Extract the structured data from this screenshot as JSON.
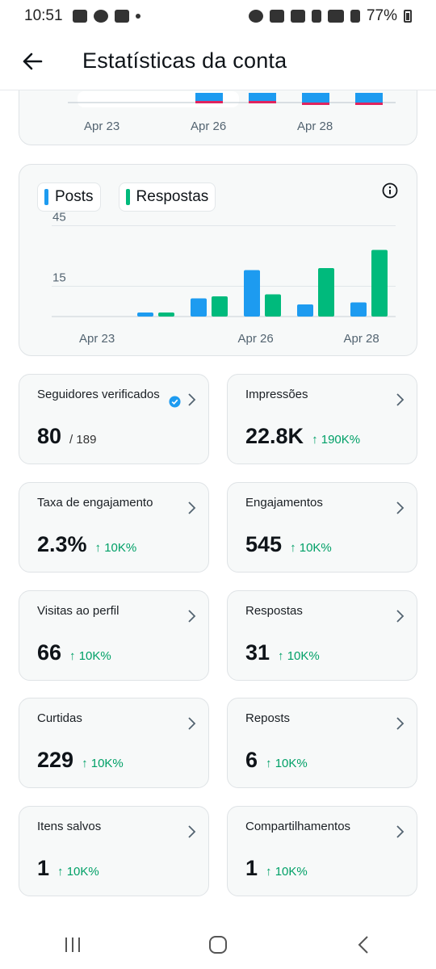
{
  "status_bar": {
    "time": "10:51",
    "battery": "77%"
  },
  "header": {
    "title": "Estatísticas da conta"
  },
  "top_chart": {
    "x_ticks": [
      "Apr 23",
      "Apr 26",
      "Apr 28"
    ],
    "colors": {
      "blue": "#1d9bf0",
      "red": "#e0245e"
    }
  },
  "chart_data": {
    "type": "bar",
    "categories": [
      "Apr 23",
      "Apr 24",
      "Apr 25",
      "Apr 26",
      "Apr 27",
      "Apr 28",
      "Apr 29"
    ],
    "x_ticks": [
      "Apr 23",
      "Apr 26",
      "Apr 28"
    ],
    "y_ticks": [
      "45",
      "15"
    ],
    "ylim": [
      0,
      50
    ],
    "series": [
      {
        "name": "Posts",
        "color": "#1d9bf0",
        "values": [
          0,
          2,
          9,
          23,
          6,
          7,
          0
        ]
      },
      {
        "name": "Respostas",
        "color": "#00ba7c",
        "values": [
          0,
          2,
          10,
          11,
          24,
          33,
          0
        ]
      }
    ],
    "legend": "top-left"
  },
  "legend": {
    "posts": "Posts",
    "respostas": "Respostas"
  },
  "stats": [
    {
      "label": "Seguidores verificados",
      "value": "80",
      "sub": "/ 189",
      "change": ""
    },
    {
      "label": "Impressões",
      "value": "22.8K",
      "sub": "",
      "change": "↑ 190K%"
    },
    {
      "label": "Taxa de engajamento",
      "value": "2.3%",
      "sub": "",
      "change": "↑ 10K%"
    },
    {
      "label": "Engajamentos",
      "value": "545",
      "sub": "",
      "change": "↑ 10K%"
    },
    {
      "label": "Visitas ao perfil",
      "value": "66",
      "sub": "",
      "change": "↑ 10K%"
    },
    {
      "label": "Respostas",
      "value": "31",
      "sub": "",
      "change": "↑ 10K%"
    },
    {
      "label": "Curtidas",
      "value": "229",
      "sub": "",
      "change": "↑ 10K%"
    },
    {
      "label": "Reposts",
      "value": "6",
      "sub": "",
      "change": "↑ 10K%"
    },
    {
      "label": "Itens salvos",
      "value": "1",
      "sub": "",
      "change": "↑ 10K%"
    },
    {
      "label": "Compartilhamentos",
      "value": "1",
      "sub": "",
      "change": "↑ 10K%"
    }
  ]
}
